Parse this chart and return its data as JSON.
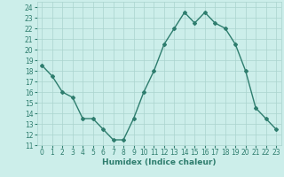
{
  "x": [
    0,
    1,
    2,
    3,
    4,
    5,
    6,
    7,
    8,
    9,
    10,
    11,
    12,
    13,
    14,
    15,
    16,
    17,
    18,
    19,
    20,
    21,
    22,
    23
  ],
  "y": [
    18.5,
    17.5,
    16.0,
    15.5,
    13.5,
    13.5,
    12.5,
    11.5,
    11.5,
    13.5,
    16.0,
    18.0,
    20.5,
    22.0,
    23.5,
    22.5,
    23.5,
    22.5,
    22.0,
    20.5,
    18.0,
    14.5,
    13.5,
    12.5
  ],
  "line_color": "#2e7d6e",
  "marker": "D",
  "marker_size": 2,
  "bg_color": "#cceeea",
  "grid_color": "#aad4ce",
  "xlabel": "Humidex (Indice chaleur)",
  "xlim": [
    -0.5,
    23.5
  ],
  "ylim": [
    11,
    24.5
  ],
  "yticks": [
    11,
    12,
    13,
    14,
    15,
    16,
    17,
    18,
    19,
    20,
    21,
    22,
    23,
    24
  ],
  "xticks": [
    0,
    1,
    2,
    3,
    4,
    5,
    6,
    7,
    8,
    9,
    10,
    11,
    12,
    13,
    14,
    15,
    16,
    17,
    18,
    19,
    20,
    21,
    22,
    23
  ],
  "xlabel_fontsize": 6.5,
  "tick_fontsize": 5.5,
  "line_width": 1.0
}
